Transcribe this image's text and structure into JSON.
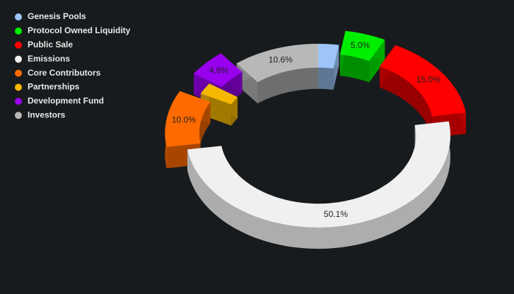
{
  "chart_data": {
    "type": "pie",
    "categories": [
      "Genesis Pools",
      "Protocol Owned Liquidity",
      "Public Sale",
      "Emissions",
      "Core Contributors",
      "Partnerships",
      "Development Fund",
      "Investors"
    ],
    "values": [
      2.5,
      5.0,
      15.0,
      50.1,
      10.0,
      2.0,
      4.8,
      10.6
    ],
    "value_labels": [
      null,
      "5.0%",
      "15.0%",
      "50.1%",
      "10.0%",
      null,
      "4.8%",
      "10.6%"
    ],
    "colors": [
      "#9ec5f7",
      "#00ee00",
      "#ff0000",
      "#f0f0f0",
      "#ff6a00",
      "#f5b800",
      "#9900ee",
      "#b8b8b8"
    ],
    "explode": [
      false,
      true,
      true,
      false,
      true,
      false,
      true,
      false
    ],
    "donut": true,
    "three_d": true,
    "legend": "top-left"
  }
}
